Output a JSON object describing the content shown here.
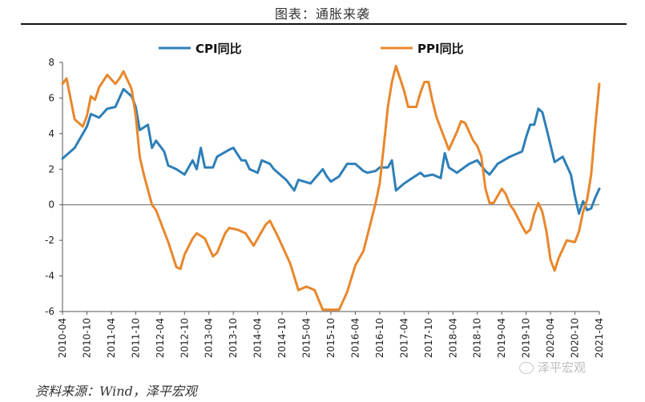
{
  "figure": {
    "title": "图表：通胀来袭",
    "source": "资料来源：Wind，泽平宏观",
    "watermark": "泽平宏观"
  },
  "chart_data": {
    "type": "line",
    "title": "",
    "xlabel": "",
    "ylabel": "",
    "ylim": [
      -6,
      8
    ],
    "y_ticks": [
      8,
      6,
      4,
      2,
      0,
      -2,
      -4,
      -6
    ],
    "x_start": "2010-04",
    "x_end": "2021-04",
    "x_tick_labels": [
      "2010-04",
      "2010-10",
      "2011-04",
      "2011-10",
      "2012-04",
      "2012-10",
      "2013-04",
      "2013-10",
      "2014-04",
      "2014-10",
      "2015-04",
      "2015-10",
      "2016-04",
      "2016-10",
      "2017-04",
      "2017-10",
      "2018-04",
      "2018-10",
      "2019-04",
      "2019-10",
      "2020-04",
      "2020-10",
      "2021-04"
    ],
    "grid": false,
    "legend_position": "top",
    "series": [
      {
        "name": "CPI同比",
        "color": "#2e7fb8",
        "points": [
          [
            "2010-04",
            2.6
          ],
          [
            "2010-07",
            3.2
          ],
          [
            "2010-10",
            4.4
          ],
          [
            "2010-11",
            5.1
          ],
          [
            "2011-01",
            4.9
          ],
          [
            "2011-03",
            5.4
          ],
          [
            "2011-05",
            5.5
          ],
          [
            "2011-07",
            6.5
          ],
          [
            "2011-09",
            6.1
          ],
          [
            "2011-10",
            5.5
          ],
          [
            "2011-11",
            4.2
          ],
          [
            "2012-01",
            4.5
          ],
          [
            "2012-02",
            3.2
          ],
          [
            "2012-03",
            3.6
          ],
          [
            "2012-05",
            3.0
          ],
          [
            "2012-06",
            2.2
          ],
          [
            "2012-08",
            2.0
          ],
          [
            "2012-10",
            1.7
          ],
          [
            "2012-12",
            2.5
          ],
          [
            "2013-01",
            2.0
          ],
          [
            "2013-02",
            3.2
          ],
          [
            "2013-03",
            2.1
          ],
          [
            "2013-05",
            2.1
          ],
          [
            "2013-06",
            2.7
          ],
          [
            "2013-09",
            3.1
          ],
          [
            "2013-10",
            3.2
          ],
          [
            "2013-12",
            2.5
          ],
          [
            "2014-01",
            2.5
          ],
          [
            "2014-02",
            2.0
          ],
          [
            "2014-04",
            1.8
          ],
          [
            "2014-05",
            2.5
          ],
          [
            "2014-07",
            2.3
          ],
          [
            "2014-08",
            2.0
          ],
          [
            "2014-10",
            1.6
          ],
          [
            "2014-11",
            1.4
          ],
          [
            "2015-01",
            0.8
          ],
          [
            "2015-02",
            1.4
          ],
          [
            "2015-05",
            1.2
          ],
          [
            "2015-08",
            2.0
          ],
          [
            "2015-09",
            1.6
          ],
          [
            "2015-10",
            1.3
          ],
          [
            "2015-12",
            1.6
          ],
          [
            "2016-02",
            2.3
          ],
          [
            "2016-04",
            2.3
          ],
          [
            "2016-06",
            1.9
          ],
          [
            "2016-07",
            1.8
          ],
          [
            "2016-09",
            1.9
          ],
          [
            "2016-10",
            2.1
          ],
          [
            "2016-12",
            2.1
          ],
          [
            "2017-01",
            2.5
          ],
          [
            "2017-02",
            0.8
          ],
          [
            "2017-04",
            1.2
          ],
          [
            "2017-06",
            1.5
          ],
          [
            "2017-08",
            1.8
          ],
          [
            "2017-09",
            1.6
          ],
          [
            "2017-11",
            1.7
          ],
          [
            "2018-01",
            1.5
          ],
          [
            "2018-02",
            2.9
          ],
          [
            "2018-03",
            2.1
          ],
          [
            "2018-05",
            1.8
          ],
          [
            "2018-08",
            2.3
          ],
          [
            "2018-10",
            2.5
          ],
          [
            "2018-12",
            1.9
          ],
          [
            "2019-01",
            1.7
          ],
          [
            "2019-03",
            2.3
          ],
          [
            "2019-06",
            2.7
          ],
          [
            "2019-09",
            3.0
          ],
          [
            "2019-10",
            3.8
          ],
          [
            "2019-11",
            4.5
          ],
          [
            "2019-12",
            4.5
          ],
          [
            "2020-01",
            5.4
          ],
          [
            "2020-02",
            5.2
          ],
          [
            "2020-03",
            4.3
          ],
          [
            "2020-05",
            2.4
          ],
          [
            "2020-07",
            2.7
          ],
          [
            "2020-09",
            1.7
          ],
          [
            "2020-10",
            0.5
          ],
          [
            "2020-11",
            -0.5
          ],
          [
            "2020-12",
            0.2
          ],
          [
            "2021-01",
            -0.3
          ],
          [
            "2021-02",
            -0.2
          ],
          [
            "2021-03",
            0.4
          ],
          [
            "2021-04",
            0.9
          ]
        ]
      },
      {
        "name": "PPI同比",
        "color": "#e8872c",
        "points": [
          [
            "2010-04",
            6.8
          ],
          [
            "2010-05",
            7.1
          ],
          [
            "2010-07",
            4.8
          ],
          [
            "2010-09",
            4.4
          ],
          [
            "2010-10",
            5.0
          ],
          [
            "2010-11",
            6.1
          ],
          [
            "2010-12",
            5.9
          ],
          [
            "2011-01",
            6.6
          ],
          [
            "2011-03",
            7.3
          ],
          [
            "2011-05",
            6.8
          ],
          [
            "2011-06",
            7.1
          ],
          [
            "2011-07",
            7.5
          ],
          [
            "2011-09",
            6.5
          ],
          [
            "2011-10",
            5.0
          ],
          [
            "2011-11",
            2.7
          ],
          [
            "2011-12",
            1.7
          ],
          [
            "2012-02",
            0.0
          ],
          [
            "2012-03",
            -0.3
          ],
          [
            "2012-06",
            -2.1
          ],
          [
            "2012-08",
            -3.5
          ],
          [
            "2012-09",
            -3.6
          ],
          [
            "2012-10",
            -2.8
          ],
          [
            "2012-12",
            -1.9
          ],
          [
            "2013-01",
            -1.6
          ],
          [
            "2013-03",
            -1.9
          ],
          [
            "2013-05",
            -2.9
          ],
          [
            "2013-06",
            -2.7
          ],
          [
            "2013-08",
            -1.6
          ],
          [
            "2013-09",
            -1.3
          ],
          [
            "2013-11",
            -1.4
          ],
          [
            "2014-01",
            -1.6
          ],
          [
            "2014-03",
            -2.3
          ],
          [
            "2014-06",
            -1.1
          ],
          [
            "2014-07",
            -0.9
          ],
          [
            "2014-09",
            -1.8
          ],
          [
            "2014-12",
            -3.3
          ],
          [
            "2015-02",
            -4.8
          ],
          [
            "2015-04",
            -4.6
          ],
          [
            "2015-06",
            -4.8
          ],
          [
            "2015-08",
            -5.9
          ],
          [
            "2015-10",
            -5.9
          ],
          [
            "2015-12",
            -5.9
          ],
          [
            "2016-02",
            -4.9
          ],
          [
            "2016-04",
            -3.4
          ],
          [
            "2016-06",
            -2.6
          ],
          [
            "2016-08",
            -0.8
          ],
          [
            "2016-09",
            0.1
          ],
          [
            "2016-10",
            1.2
          ],
          [
            "2016-11",
            3.3
          ],
          [
            "2016-12",
            5.5
          ],
          [
            "2017-01",
            6.9
          ],
          [
            "2017-02",
            7.8
          ],
          [
            "2017-04",
            6.4
          ],
          [
            "2017-05",
            5.5
          ],
          [
            "2017-07",
            5.5
          ],
          [
            "2017-08",
            6.3
          ],
          [
            "2017-09",
            6.9
          ],
          [
            "2017-10",
            6.9
          ],
          [
            "2017-11",
            5.8
          ],
          [
            "2017-12",
            4.9
          ],
          [
            "2018-02",
            3.7
          ],
          [
            "2018-03",
            3.1
          ],
          [
            "2018-05",
            4.1
          ],
          [
            "2018-06",
            4.7
          ],
          [
            "2018-07",
            4.6
          ],
          [
            "2018-09",
            3.6
          ],
          [
            "2018-10",
            3.3
          ],
          [
            "2018-11",
            2.7
          ],
          [
            "2018-12",
            0.9
          ],
          [
            "2019-01",
            0.1
          ],
          [
            "2019-02",
            0.1
          ],
          [
            "2019-04",
            0.9
          ],
          [
            "2019-05",
            0.6
          ],
          [
            "2019-06",
            0.0
          ],
          [
            "2019-07",
            -0.3
          ],
          [
            "2019-09",
            -1.2
          ],
          [
            "2019-10",
            -1.6
          ],
          [
            "2019-11",
            -1.4
          ],
          [
            "2019-12",
            -0.5
          ],
          [
            "2020-01",
            0.1
          ],
          [
            "2020-02",
            -0.4
          ],
          [
            "2020-03",
            -1.5
          ],
          [
            "2020-04",
            -3.1
          ],
          [
            "2020-05",
            -3.7
          ],
          [
            "2020-06",
            -3.0
          ],
          [
            "2020-08",
            -2.0
          ],
          [
            "2020-10",
            -2.1
          ],
          [
            "2020-11",
            -1.5
          ],
          [
            "2020-12",
            -0.4
          ],
          [
            "2021-01",
            0.3
          ],
          [
            "2021-02",
            1.7
          ],
          [
            "2021-03",
            4.4
          ],
          [
            "2021-04",
            6.8
          ]
        ]
      }
    ]
  }
}
